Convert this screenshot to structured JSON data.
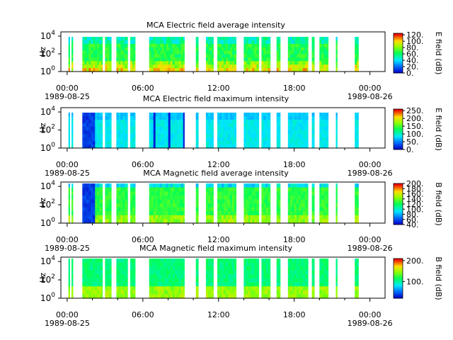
{
  "chart_data": [
    {
      "type": "heatmap",
      "title": "MCA  Electric field average intensity",
      "ylabel": "Hz",
      "y_scale": "log",
      "ylim": [
        1,
        30000
      ],
      "y_ticks": [
        {
          "base": "10",
          "exp": "0"
        },
        {
          "base": "10",
          "exp": "2"
        },
        {
          "base": "10",
          "exp": "4"
        }
      ],
      "x_ticks": [
        "00:00",
        "06:00",
        "12:00",
        "18:00",
        "00:00"
      ],
      "x_dates": [
        "1989-08-25",
        "1989-08-26"
      ],
      "xlim_hours": [
        -0.5,
        25.2
      ],
      "colorbar": {
        "label": "E field (dB)",
        "range": [
          0,
          125
        ],
        "ticks": [
          "0.",
          "20.",
          "40.",
          "60.",
          "80.",
          "100.",
          "120."
        ]
      }
    },
    {
      "type": "heatmap",
      "title": "MCA  Electric field maximum intensity",
      "ylabel": "Hz",
      "y_scale": "log",
      "ylim": [
        1,
        30000
      ],
      "y_ticks": [
        {
          "base": "10",
          "exp": "0"
        },
        {
          "base": "10",
          "exp": "2"
        },
        {
          "base": "10",
          "exp": "4"
        }
      ],
      "x_ticks": [
        "00:00",
        "06:00",
        "12:00",
        "18:00",
        "00:00"
      ],
      "x_dates": [
        "1989-08-25",
        "1989-08-26"
      ],
      "xlim_hours": [
        -0.5,
        25.2
      ],
      "colorbar": {
        "label": "E field (dB)",
        "range": [
          0,
          260
        ],
        "ticks": [
          "0.",
          "50.",
          "100.",
          "150.",
          "200.",
          "250."
        ]
      }
    },
    {
      "type": "heatmap",
      "title": "MCA  Magnetic field average intensity",
      "ylabel": "Hz",
      "y_scale": "log",
      "ylim": [
        1,
        30000
      ],
      "y_ticks": [
        {
          "base": "10",
          "exp": "0"
        },
        {
          "base": "10",
          "exp": "2"
        },
        {
          "base": "10",
          "exp": "4"
        }
      ],
      "x_ticks": [
        "00:00",
        "06:00",
        "12:00",
        "18:00",
        "00:00"
      ],
      "x_dates": [
        "1989-08-25",
        "1989-08-26"
      ],
      "xlim_hours": [
        -0.5,
        25.2
      ],
      "colorbar": {
        "label": "B field (dB)",
        "range": [
          40,
          200
        ],
        "ticks": [
          "40.",
          "60.",
          "80.",
          "100.",
          "120.",
          "140.",
          "160.",
          "180.",
          "200."
        ]
      }
    },
    {
      "type": "heatmap",
      "title": "MCA  Magnetic field maximum intensity",
      "ylabel": "Hz",
      "y_scale": "log",
      "ylim": [
        1,
        30000
      ],
      "y_ticks": [
        {
          "base": "10",
          "exp": "0"
        },
        {
          "base": "10",
          "exp": "2"
        },
        {
          "base": "10",
          "exp": "4"
        }
      ],
      "x_ticks": [
        "00:00",
        "06:00",
        "12:00",
        "18:00",
        "00:00"
      ],
      "x_dates": [
        "1989-08-25",
        "1989-08-26"
      ],
      "xlim_hours": [
        -0.5,
        25.2
      ],
      "colorbar": {
        "label": "B field (dB)",
        "range": [
          20,
          210
        ],
        "ticks": [
          "100.",
          "200."
        ]
      }
    }
  ],
  "data_gaps_note_hours": [
    [
      0.1,
      0.15
    ],
    [
      0.35,
      0.4
    ],
    [
      1.2,
      2.8
    ],
    [
      3.0,
      3.5
    ],
    [
      3.9,
      4.8
    ],
    [
      5.0,
      5.4
    ],
    [
      6.5,
      9.3
    ],
    [
      10.2,
      10.4
    ],
    [
      11.0,
      11.6
    ],
    [
      11.9,
      13.4
    ],
    [
      14.0,
      15.2
    ],
    [
      15.4,
      16.1
    ],
    [
      16.6,
      16.9
    ],
    [
      17.5,
      19.1
    ],
    [
      19.4,
      19.6
    ],
    [
      20.0,
      20.7
    ],
    [
      21.3,
      21.4
    ],
    [
      22.8,
      23.1
    ]
  ]
}
